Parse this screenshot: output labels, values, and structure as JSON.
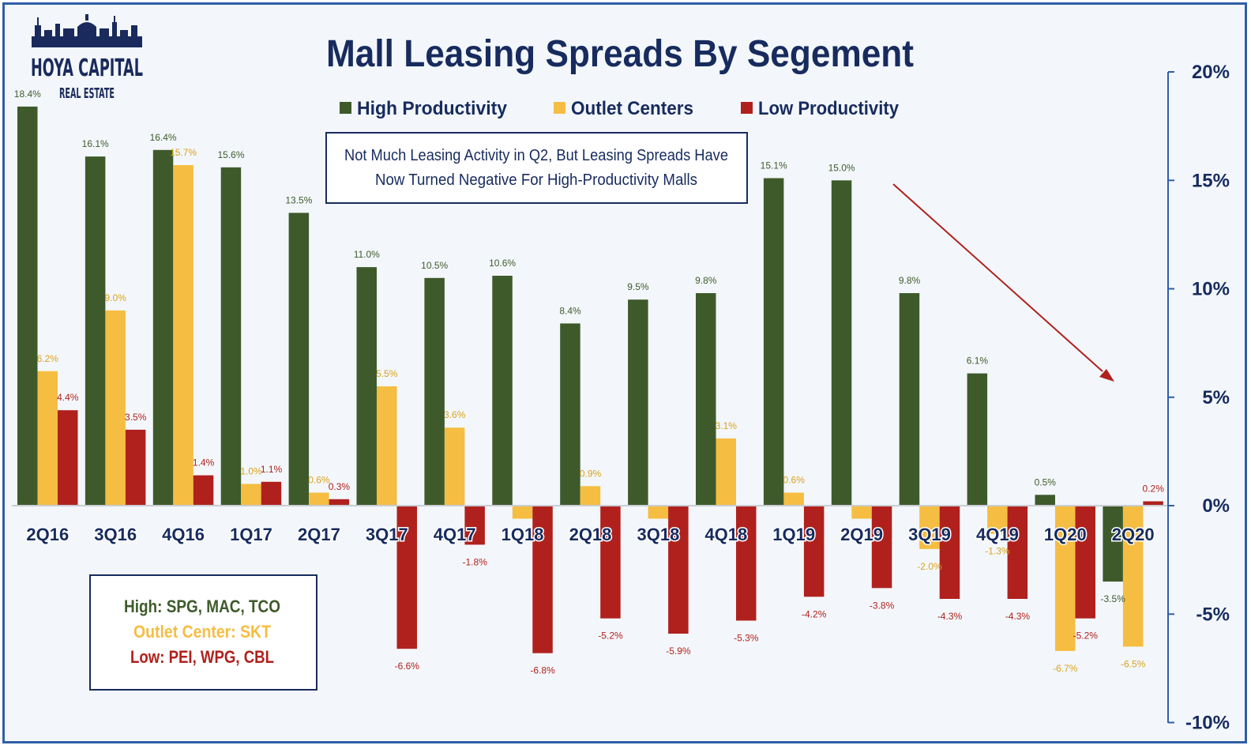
{
  "logo": {
    "line1": "HOYA CAPITAL",
    "line2": "REAL ESTATE"
  },
  "chart_data": {
    "type": "bar",
    "title": "Mall Leasing Spreads By Segement",
    "categories": [
      "2Q16",
      "3Q16",
      "4Q16",
      "1Q17",
      "2Q17",
      "3Q17",
      "4Q17",
      "1Q18",
      "2Q18",
      "3Q18",
      "4Q18",
      "1Q19",
      "2Q19",
      "3Q19",
      "4Q19",
      "1Q20",
      "2Q20"
    ],
    "series": [
      {
        "name": "High Productivity",
        "color": "#3e5a2b",
        "label_color": "#3e5a2b",
        "values": [
          18.4,
          16.1,
          16.4,
          15.6,
          13.5,
          11.0,
          10.5,
          10.6,
          8.4,
          9.5,
          9.8,
          15.1,
          15.0,
          9.8,
          6.1,
          0.5,
          -3.5
        ],
        "labels": [
          "18.4%",
          "16.1%",
          "16.4%",
          "15.6%",
          "13.5%",
          "11.0%",
          "10.5%",
          "10.6%",
          "8.4%",
          "9.5%",
          "9.8%",
          "15.1%",
          "15.0%",
          "9.8%",
          "6.1%",
          "0.5%",
          "-3.5%"
        ]
      },
      {
        "name": "Outlet Centers",
        "color": "#f5bd42",
        "label_color": "#d9a21f",
        "values": [
          6.2,
          9.0,
          15.7,
          1.0,
          0.6,
          5.5,
          3.6,
          -0.6,
          0.9,
          -0.6,
          3.1,
          0.6,
          -0.6,
          -2.0,
          -1.3,
          -6.7,
          -6.5
        ],
        "labels": [
          "6.2%",
          "9.0%",
          "15.7%",
          "1.0%",
          "0.6%",
          "5.5%",
          "3.6%",
          "",
          "0.9%",
          "",
          "3.1%",
          "0.6%",
          "",
          "-2.0%",
          "-1.3%",
          "-6.7%",
          "-6.5%"
        ]
      },
      {
        "name": "Low Productivity",
        "color": "#b0211d",
        "label_color": "#b0211d",
        "values": [
          4.4,
          3.5,
          1.4,
          1.1,
          0.3,
          -6.6,
          -1.8,
          -6.8,
          -5.2,
          -5.9,
          -5.3,
          -4.2,
          -3.8,
          -4.3,
          -4.3,
          -5.2,
          0.2
        ],
        "labels": [
          "4.4%",
          "3.5%",
          "1.4%",
          "1.1%",
          "0.3%",
          "-6.6%",
          "-1.8%",
          "-6.8%",
          "-5.2%",
          "-5.9%",
          "-5.3%",
          "-4.2%",
          "-3.8%",
          "-4.3%",
          "-4.3%",
          "-5.2%",
          "0.2%"
        ]
      }
    ],
    "ylim": [
      -10,
      20
    ],
    "yticks": [
      20,
      15,
      10,
      5,
      0,
      -5,
      -10
    ],
    "ytick_labels": [
      "20%",
      "15%",
      "10%",
      "5%",
      "0%",
      "-5%",
      "-10%"
    ],
    "axis_position": "right",
    "grid": false,
    "legend_placement": "top-center",
    "annotation": {
      "line1": "Not Much Leasing Activity in Q2, But Leasing Spreads Have",
      "line2": "Now Turned Negative For High-Productivity Malls"
    },
    "trend_arrow_color": "#b0211d",
    "key_box": {
      "high": "High: SPG, MAC, TCO",
      "outlet": "Outlet Center: SKT",
      "low": "Low: PEI, WPG, CBL"
    }
  }
}
